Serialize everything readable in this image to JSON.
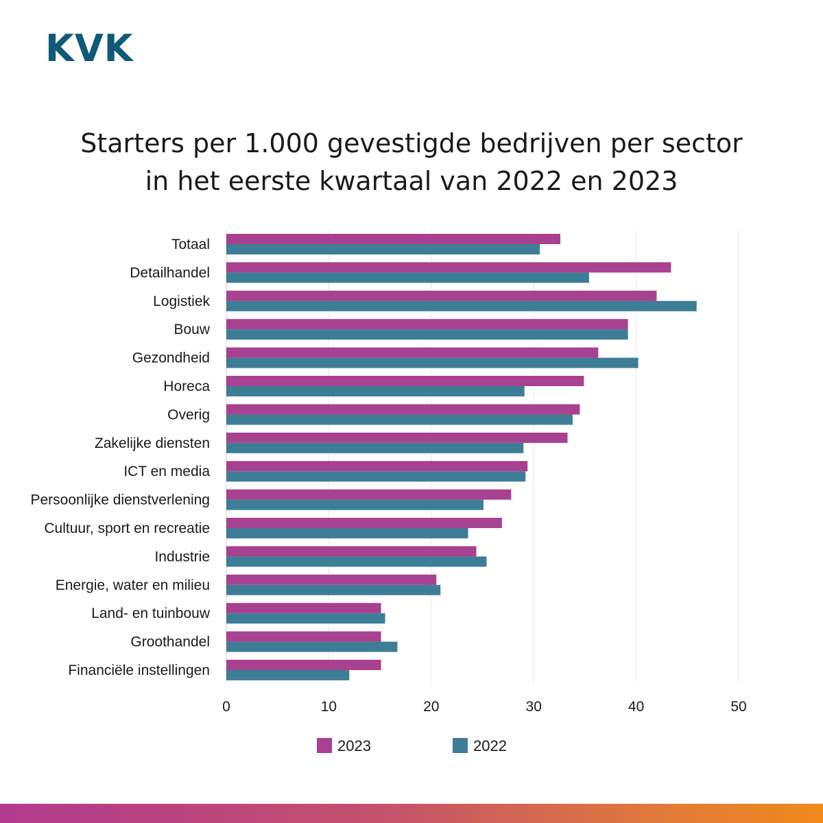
{
  "logo": {
    "text": "KVK"
  },
  "title": {
    "line1": "Starters per 1.000 gevestigde bedrijven per sector",
    "line2": "in het eerste kwartaal van 2022 en 2023"
  },
  "colors": {
    "series_2023": "#a8418f",
    "series_2022": "#3e7d96",
    "grid": "#e6e6e6",
    "brand": "#0e5a78"
  },
  "chart_data": {
    "type": "bar",
    "orientation": "horizontal",
    "title": "Starters per 1.000 gevestigde bedrijven per sector in het eerste kwartaal van 2022 en 2023",
    "categories": [
      "Totaal",
      "Detailhandel",
      "Logistiek",
      "Bouw",
      "Gezondheid",
      "Horeca",
      "Overig",
      "Zakelijke diensten",
      "ICT en media",
      "Persoonlijke dienstverlening",
      "Cultuur, sport en recreatie",
      "Industrie",
      "Energie, water en milieu",
      "Land- en tuinbouw",
      "Groothandel",
      "Financiële instellingen"
    ],
    "series": [
      {
        "name": "2023",
        "values": [
          32.6,
          43.4,
          42.0,
          39.2,
          36.3,
          34.9,
          34.5,
          33.3,
          29.4,
          27.8,
          26.9,
          24.4,
          20.5,
          15.1,
          15.1,
          15.1
        ]
      },
      {
        "name": "2022",
        "values": [
          30.6,
          35.4,
          45.9,
          39.2,
          40.2,
          29.1,
          33.8,
          29.0,
          29.2,
          25.1,
          23.6,
          25.4,
          20.9,
          15.5,
          16.7,
          12.0
        ]
      }
    ],
    "xlim": [
      0,
      50
    ],
    "xticks": [
      "0",
      "10",
      "20",
      "30",
      "40",
      "50"
    ],
    "grid": "vertical",
    "legend_placement": "bottom",
    "xlabel": "",
    "ylabel": ""
  }
}
